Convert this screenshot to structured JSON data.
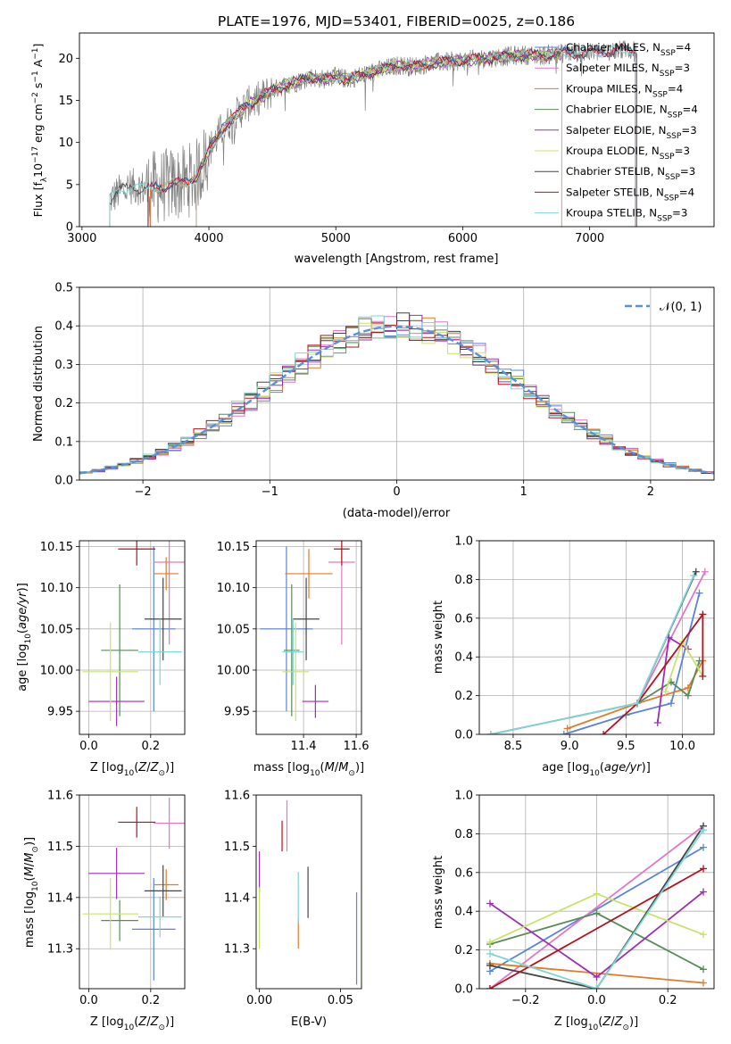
{
  "figure": {
    "title": "PLATE=1976, MJD=53401, FIBERID=0025, z=0.186"
  },
  "colors": {
    "chabrier_miles": "#5b84d6",
    "salpeter_miles": "#e377c2",
    "kroupa_miles": "#e07b28",
    "chabrier_elodie": "#5a8a5a",
    "salpeter_elodie": "#9b30b0",
    "kroupa_elodie": "#c9e36a",
    "chabrier_stelib": "#444444",
    "salpeter_stelib": "#b5121b",
    "kroupa_stelib": "#7fd6d6",
    "data": "#808080",
    "normal": "#5b8fd6"
  },
  "chart_data": [
    {
      "id": "spectrum",
      "type": "line",
      "title": "PLATE=1976, MJD=53401, FIBERID=0025, z=0.186",
      "xlabel": "wavelength [Angstrom, rest frame]",
      "ylabel": "Flux [f_λ 10^-17 erg cm^-2 s^-1 A^-1]",
      "xlim": [
        2980,
        7980
      ],
      "ylim": [
        0,
        23
      ],
      "xticks": [
        3000,
        4000,
        5000,
        6000,
        7000
      ],
      "yticks": [
        0,
        5,
        10,
        15,
        20
      ],
      "grid": false,
      "legend_position": "top-right",
      "continuum_x": [
        3220,
        3300,
        3400,
        3500,
        3600,
        3700,
        3800,
        3900,
        4000,
        4100,
        4200,
        4300,
        4400,
        4500,
        4600,
        4700,
        4800,
        4900,
        5000,
        5100,
        5200,
        5300,
        5400,
        5500,
        5600,
        5700,
        5800,
        5900,
        6000,
        6100,
        6200,
        6300,
        6400,
        6500,
        6600,
        6700,
        6800,
        6900,
        7000,
        7100,
        7200,
        7300,
        7370
      ],
      "continuum_y": [
        3.2,
        4.2,
        4.8,
        4.5,
        4.7,
        5.0,
        5.2,
        6.0,
        9.0,
        11.5,
        13.0,
        14.5,
        15.2,
        16.2,
        16.8,
        17.2,
        17.8,
        17.5,
        17.8,
        17.5,
        18.0,
        18.4,
        18.8,
        19.2,
        19.0,
        19.3,
        19.5,
        19.6,
        19.7,
        19.9,
        20.0,
        20.2,
        20.3,
        20.4,
        20.3,
        20.5,
        20.6,
        20.7,
        20.6,
        20.8,
        20.9,
        21.0,
        21.0
      ],
      "legend": [
        {
          "label": "Chabrier MILES, N",
          "sub": "SSP",
          "tail": "=4",
          "color_key": "chabrier_miles"
        },
        {
          "label": "Salpeter MILES, N",
          "sub": "SSP",
          "tail": "=3",
          "color_key": "salpeter_miles"
        },
        {
          "label": "Kroupa MILES, N",
          "sub": "SSP",
          "tail": "=4",
          "color_key": "kroupa_miles"
        },
        {
          "label": "Chabrier ELODIE, N",
          "sub": "SSP",
          "tail": "=4",
          "color_key": "chabrier_elodie"
        },
        {
          "label": "Salpeter ELODIE, N",
          "sub": "SSP",
          "tail": "=3",
          "color_key": "salpeter_elodie"
        },
        {
          "label": "Kroupa ELODIE, N",
          "sub": "SSP",
          "tail": "=3",
          "color_key": "kroupa_elodie"
        },
        {
          "label": "Chabrier STELIB, N",
          "sub": "SSP",
          "tail": "=3",
          "color_key": "chabrier_stelib"
        },
        {
          "label": "Salpeter STELIB, N",
          "sub": "SSP",
          "tail": "=4",
          "color_key": "salpeter_stelib"
        },
        {
          "label": "Kroupa STELIB, N",
          "sub": "SSP",
          "tail": "=3",
          "color_key": "kroupa_stelib"
        }
      ]
    },
    {
      "id": "residuals",
      "type": "line",
      "xlabel": "(data-model)/error",
      "ylabel": "Normed distribution",
      "xlim": [
        -2.5,
        2.5
      ],
      "ylim": [
        0,
        0.5
      ],
      "xticks": [
        -2,
        -1,
        0,
        1,
        2
      ],
      "yticks": [
        0.0,
        0.1,
        0.2,
        0.3,
        0.4,
        0.5
      ],
      "grid": true,
      "legend_position": "top-right",
      "legend_label": "𝒩(0, 1)",
      "bin_width": 0.1
    },
    {
      "id": "age-vs-Z",
      "type": "scatter",
      "xlabel": "Z [log10(Z/Z⊙)]",
      "ylabel": "age [log10(age/yr)]",
      "xlim": [
        -0.03,
        0.31
      ],
      "ylim": [
        9.922,
        10.157
      ],
      "xticks": [
        0.0,
        0.2
      ],
      "yticks": [
        9.95,
        10.0,
        10.05,
        10.1,
        10.15
      ],
      "grid": true,
      "points": [
        {
          "key": "chabrier_miles",
          "x": 0.21,
          "xerr": 0.07,
          "y": 10.05,
          "yerr": 0.1
        },
        {
          "key": "salpeter_miles",
          "x": 0.26,
          "xerr": 0.05,
          "y": 10.131,
          "yerr": 0.1
        },
        {
          "key": "kroupa_miles",
          "x": 0.25,
          "xerr": 0.04,
          "y": 10.117,
          "yerr": 0.02
        },
        {
          "key": "chabrier_elodie",
          "x": 0.1,
          "xerr": 0.06,
          "y": 10.024,
          "yerr": 0.08
        },
        {
          "key": "salpeter_elodie",
          "x": 0.09,
          "xerr": 0.09,
          "y": 9.962,
          "yerr": 0.03
        },
        {
          "key": "kroupa_elodie",
          "x": 0.07,
          "xerr": 0.09,
          "y": 9.998,
          "yerr": 0.06
        },
        {
          "key": "chabrier_stelib",
          "x": 0.24,
          "xerr": 0.06,
          "y": 10.062,
          "yerr": 0.05
        },
        {
          "key": "salpeter_stelib",
          "x": 0.155,
          "xerr": 0.06,
          "y": 10.147,
          "yerr": 0.02
        },
        {
          "key": "kroupa_stelib",
          "x": 0.23,
          "xerr": 0.07,
          "y": 10.022,
          "yerr": 0.04
        }
      ]
    },
    {
      "id": "age-vs-mass",
      "type": "scatter",
      "xlabel": "mass [log10(M/M⊙)]",
      "ylabel": "",
      "xlim": [
        11.22,
        11.62
      ],
      "ylim": [
        9.922,
        10.157
      ],
      "xticks": [
        11.4,
        11.6
      ],
      "yticks": [
        9.95,
        10.0,
        10.05,
        10.1,
        10.15
      ],
      "grid": true,
      "points": [
        {
          "key": "chabrier_miles",
          "x": 11.335,
          "xerr": 0.1,
          "y": 10.05,
          "yerr": 0.1
        },
        {
          "key": "salpeter_miles",
          "x": 11.545,
          "xerr": 0.05,
          "y": 10.131,
          "yerr": 0.1
        },
        {
          "key": "kroupa_miles",
          "x": 11.42,
          "xerr": 0.09,
          "y": 10.117,
          "yerr": 0.03
        },
        {
          "key": "chabrier_elodie",
          "x": 11.355,
          "xerr": 0.03,
          "y": 10.024,
          "yerr": 0.08
        },
        {
          "key": "salpeter_elodie",
          "x": 11.445,
          "xerr": 0.05,
          "y": 9.962,
          "yerr": 0.02
        },
        {
          "key": "kroupa_elodie",
          "x": 11.37,
          "xerr": 0.05,
          "y": 9.998,
          "yerr": 0.06
        },
        {
          "key": "chabrier_stelib",
          "x": 11.41,
          "xerr": 0.05,
          "y": 10.062,
          "yerr": 0.05
        },
        {
          "key": "salpeter_stelib",
          "x": 11.545,
          "xerr": 0.03,
          "y": 10.147,
          "yerr": 0.02
        },
        {
          "key": "kroupa_stelib",
          "x": 11.36,
          "xerr": 0.04,
          "y": 10.022,
          "yerr": 0.04
        }
      ]
    },
    {
      "id": "weight-vs-age",
      "type": "line",
      "xlabel": "age [log10(age/yr)]",
      "ylabel": "mass weight",
      "xlim": [
        8.2,
        10.28
      ],
      "ylim": [
        0,
        1.0
      ],
      "xticks": [
        8.5,
        9.0,
        9.5,
        10.0
      ],
      "yticks": [
        0.0,
        0.2,
        0.4,
        0.6,
        0.8,
        1.0
      ],
      "grid": true,
      "series": [
        {
          "key": "chabrier_miles",
          "x": [
            8.95,
            9.5,
            9.9,
            10.15
          ],
          "y": [
            0.0,
            0.1,
            0.16,
            0.73
          ]
        },
        {
          "key": "salpeter_miles",
          "x": [
            9.6,
            10.2
          ],
          "y": [
            0.16,
            0.84
          ]
        },
        {
          "key": "kroupa_miles",
          "x": [
            8.98,
            9.6,
            10.05,
            10.18
          ],
          "y": [
            0.03,
            0.16,
            0.24,
            0.38
          ]
        },
        {
          "key": "chabrier_elodie",
          "x": [
            9.6,
            9.9,
            10.05,
            10.15
          ],
          "y": [
            0.16,
            0.27,
            0.2,
            0.38
          ]
        },
        {
          "key": "salpeter_elodie",
          "x": [
            9.78,
            9.88,
            10.05
          ],
          "y": [
            0.06,
            0.5,
            0.44
          ]
        },
        {
          "key": "kroupa_elodie",
          "x": [
            9.85,
            10.0,
            10.18
          ],
          "y": [
            0.22,
            0.48,
            0.3
          ]
        },
        {
          "key": "chabrier_stelib",
          "x": [
            8.3,
            9.6,
            10.12
          ],
          "y": [
            0.0,
            0.16,
            0.84
          ]
        },
        {
          "key": "salpeter_stelib",
          "x": [
            9.3,
            9.6,
            10.18,
            10.18
          ],
          "y": [
            0.0,
            0.16,
            0.62,
            0.3
          ]
        },
        {
          "key": "kroupa_stelib",
          "x": [
            8.3,
            9.6,
            10.1
          ],
          "y": [
            0.0,
            0.16,
            0.82
          ]
        }
      ]
    },
    {
      "id": "mass-vs-Z",
      "type": "scatter",
      "xlabel": "Z [log10(Z/Z⊙)]",
      "ylabel": "mass [log10(M/M⊙)]",
      "xlim": [
        -0.03,
        0.31
      ],
      "ylim": [
        11.222,
        11.6
      ],
      "xticks": [
        0.0,
        0.2
      ],
      "yticks": [
        11.3,
        11.4,
        11.5,
        11.6
      ],
      "grid": true,
      "points": [
        {
          "key": "chabrier_miles",
          "x": 0.21,
          "xerr": 0.07,
          "y": 11.338,
          "yerr": 0.1
        },
        {
          "key": "salpeter_miles",
          "x": 0.26,
          "xerr": 0.05,
          "y": 11.545,
          "yerr": 0.05
        },
        {
          "key": "kroupa_miles",
          "x": 0.25,
          "xerr": 0.04,
          "y": 11.425,
          "yerr": 0.03
        },
        {
          "key": "chabrier_elodie",
          "x": 0.1,
          "xerr": 0.06,
          "y": 11.355,
          "yerr": 0.04
        },
        {
          "key": "salpeter_elodie",
          "x": 0.09,
          "xerr": 0.09,
          "y": 11.447,
          "yerr": 0.05
        },
        {
          "key": "kroupa_elodie",
          "x": 0.07,
          "xerr": 0.09,
          "y": 11.368,
          "yerr": 0.07
        },
        {
          "key": "chabrier_stelib",
          "x": 0.24,
          "xerr": 0.06,
          "y": 11.413,
          "yerr": 0.05
        },
        {
          "key": "salpeter_stelib",
          "x": 0.155,
          "xerr": 0.06,
          "y": 11.547,
          "yerr": 0.03
        },
        {
          "key": "kroupa_stelib",
          "x": 0.23,
          "xerr": 0.07,
          "y": 11.362,
          "yerr": 0.04
        }
      ]
    },
    {
      "id": "mass-vs-ebv",
      "type": "scatter",
      "xlabel": "E(B-V)",
      "ylabel": "",
      "xlim": [
        -0.002,
        0.063
      ],
      "ylim": [
        11.222,
        11.6
      ],
      "xticks": [
        0.0,
        0.05
      ],
      "yticks": [
        11.3,
        11.4,
        11.5,
        11.6
      ],
      "grid": false,
      "points": [
        {
          "key": "chabrier_miles",
          "x": 0.06,
          "xerr": 0,
          "y": 11.32,
          "yerr": 0.09
        },
        {
          "key": "salpeter_miles",
          "x": 0.017,
          "xerr": 0,
          "y": 11.54,
          "yerr": 0.05
        },
        {
          "key": "kroupa_miles",
          "x": 0.024,
          "xerr": 0,
          "y": 11.33,
          "yerr": 0.03
        },
        {
          "key": "salpeter_elodie",
          "x": 0.0,
          "xerr": 0,
          "y": 11.45,
          "yerr": 0.04
        },
        {
          "key": "kroupa_elodie",
          "x": 0.0,
          "xerr": 0,
          "y": 11.36,
          "yerr": 0.06
        },
        {
          "key": "chabrier_stelib",
          "x": 0.03,
          "xerr": 0,
          "y": 11.41,
          "yerr": 0.05
        },
        {
          "key": "salpeter_stelib",
          "x": 0.014,
          "xerr": 0,
          "y": 11.52,
          "yerr": 0.03
        },
        {
          "key": "kroupa_stelib",
          "x": 0.024,
          "xerr": 0,
          "y": 11.4,
          "yerr": 0.05
        }
      ]
    },
    {
      "id": "weight-vs-Z",
      "type": "line",
      "xlabel": "Z [log10(Z/Z⊙)]",
      "ylabel": "mass weight",
      "xlim": [
        -0.33,
        0.33
      ],
      "ylim": [
        0,
        1.0
      ],
      "xticks": [
        -0.2,
        0.0,
        0.2
      ],
      "yticks": [
        0.0,
        0.2,
        0.4,
        0.6,
        0.8,
        1.0
      ],
      "grid": true,
      "series": [
        {
          "key": "chabrier_miles",
          "x": [
            -0.3,
            0.3
          ],
          "y": [
            0.09,
            0.73
          ]
        },
        {
          "key": "salpeter_miles",
          "x": [
            -0.3,
            0.3
          ],
          "y": [
            0.0,
            0.84
          ]
        },
        {
          "key": "kroupa_miles",
          "x": [
            -0.3,
            0.3
          ],
          "y": [
            0.13,
            0.03
          ]
        },
        {
          "key": "chabrier_elodie",
          "x": [
            -0.3,
            0.0,
            0.3
          ],
          "y": [
            0.23,
            0.39,
            0.1
          ]
        },
        {
          "key": "salpeter_elodie",
          "x": [
            -0.3,
            0.0,
            0.3
          ],
          "y": [
            0.44,
            0.06,
            0.5
          ]
        },
        {
          "key": "kroupa_elodie",
          "x": [
            -0.3,
            0.0,
            0.3
          ],
          "y": [
            0.24,
            0.49,
            0.28
          ]
        },
        {
          "key": "chabrier_stelib",
          "x": [
            -0.3,
            0.0,
            0.3
          ],
          "y": [
            0.12,
            0.0,
            0.84
          ]
        },
        {
          "key": "salpeter_stelib",
          "x": [
            -0.3,
            0.3
          ],
          "y": [
            0.0,
            0.62
          ]
        },
        {
          "key": "kroupa_stelib",
          "x": [
            -0.3,
            0.0,
            0.3
          ],
          "y": [
            0.18,
            0.0,
            0.82
          ]
        }
      ]
    }
  ]
}
